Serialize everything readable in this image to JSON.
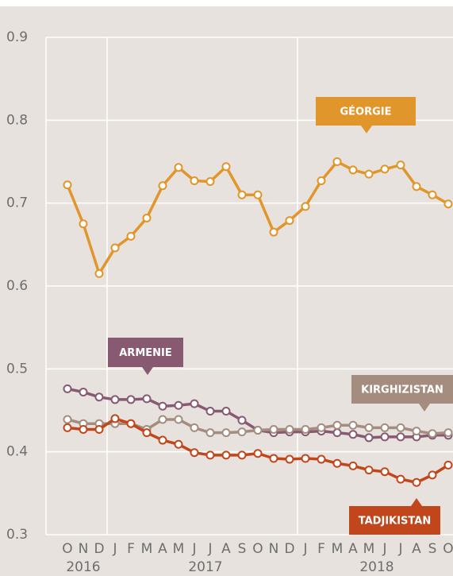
{
  "chart_data": {
    "type": "line",
    "categories": [
      "O",
      "N",
      "D",
      "J",
      "F",
      "M",
      "A",
      "M",
      "J",
      "J",
      "A",
      "S",
      "O",
      "N",
      "D",
      "J",
      "F",
      "M",
      "A",
      "M",
      "J",
      "J",
      "A",
      "S",
      "O"
    ],
    "years": [
      "2016",
      "2017",
      "2018"
    ],
    "ylim": [
      0.3,
      0.9
    ],
    "yticks": [
      0.3,
      0.4,
      0.5,
      0.6,
      0.7,
      0.8,
      0.9
    ],
    "grid": true,
    "series": [
      {
        "name": "GÉORGIE",
        "color": "#e0962a",
        "values": [
          0.722,
          0.675,
          0.615,
          0.646,
          0.66,
          0.682,
          0.721,
          0.743,
          0.727,
          0.726,
          0.744,
          0.71,
          0.71,
          0.665,
          0.679,
          0.696,
          0.727,
          0.75,
          0.74,
          0.735,
          0.741,
          0.746,
          0.72,
          0.71,
          0.699
        ]
      },
      {
        "name": "ARMENIE",
        "color": "#875a72",
        "values": [
          0.476,
          0.472,
          0.466,
          0.463,
          0.463,
          0.464,
          0.455,
          0.456,
          0.458,
          0.449,
          0.449,
          0.438,
          0.426,
          0.423,
          0.424,
          0.424,
          0.425,
          0.423,
          0.421,
          0.417,
          0.418,
          0.418,
          0.418,
          0.42,
          0.42
        ]
      },
      {
        "name": "KIRGHIZISTAN",
        "color": "#a48d7e",
        "values": [
          0.439,
          0.434,
          0.434,
          0.434,
          0.434,
          0.427,
          0.439,
          0.439,
          0.429,
          0.423,
          0.423,
          0.424,
          0.426,
          0.427,
          0.427,
          0.427,
          0.429,
          0.432,
          0.432,
          0.429,
          0.429,
          0.429,
          0.425,
          0.422,
          0.423
        ]
      },
      {
        "name": "TADJIKISTAN",
        "color": "#c1461c",
        "values": [
          0.429,
          0.427,
          0.427,
          0.44,
          0.434,
          0.423,
          0.414,
          0.409,
          0.399,
          0.396,
          0.396,
          0.396,
          0.398,
          0.392,
          0.391,
          0.392,
          0.391,
          0.386,
          0.383,
          0.378,
          0.376,
          0.367,
          0.363,
          0.372,
          0.384
        ]
      }
    ]
  }
}
